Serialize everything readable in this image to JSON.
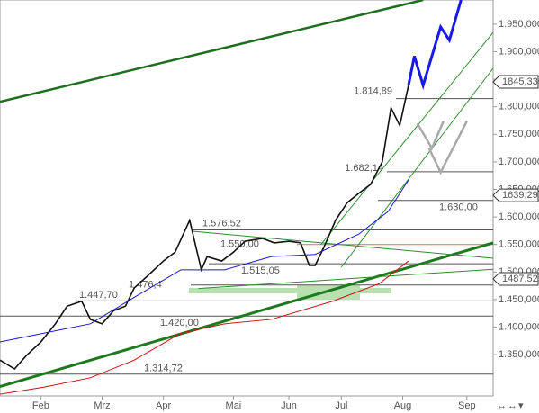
{
  "chart_data": {
    "type": "line",
    "xlim": [
      0,
      169
    ],
    "ylim": [
      1275,
      1994
    ],
    "xticks": [
      {
        "value": 14,
        "label": "Feb"
      },
      {
        "value": 35,
        "label": "Mrz"
      },
      {
        "value": 56,
        "label": "Apr"
      },
      {
        "value": 80,
        "label": "Mai"
      },
      {
        "value": 99,
        "label": "Jun"
      },
      {
        "value": 117,
        "label": "Jul"
      },
      {
        "value": 138,
        "label": "Aug"
      },
      {
        "value": 160,
        "label": "Sep"
      }
    ],
    "yticks": [
      {
        "value": 1350,
        "label": "1.350,000"
      },
      {
        "value": 1400,
        "label": "1.400,000"
      },
      {
        "value": 1450,
        "label": "1.450,000"
      },
      {
        "value": 1500,
        "label": "1.500,000"
      },
      {
        "value": 1550,
        "label": "1.550,000"
      },
      {
        "value": 1600,
        "label": "1.600,000"
      },
      {
        "value": 1650,
        "label": "1.650,000"
      },
      {
        "value": 1700,
        "label": "1.700,000"
      },
      {
        "value": 1750,
        "label": "1.750,000"
      },
      {
        "value": 1800,
        "label": "1.800,000"
      },
      {
        "value": 1850,
        "label": "1.850,000"
      },
      {
        "value": 1900,
        "label": "1.900,000"
      },
      {
        "value": 1950,
        "label": "1.950,000"
      }
    ],
    "series": [
      {
        "color": "#111111",
        "x": [
          0,
          5,
          9,
          14,
          19,
          23,
          28,
          31,
          35,
          39,
          43,
          46,
          51,
          56,
          60,
          65,
          69,
          71,
          76,
          80,
          84,
          90,
          94,
          99,
          103,
          106,
          108,
          111,
          115,
          119,
          123,
          127,
          131,
          134,
          137,
          140
        ],
        "values": [
          1340,
          1324,
          1348,
          1373,
          1406,
          1438,
          1447,
          1414,
          1406,
          1430,
          1438,
          1471,
          1495,
          1520,
          1536,
          1594,
          1504,
          1528,
          1520,
          1536,
          1556,
          1561,
          1553,
          1556,
          1553,
          1512,
          1512,
          1545,
          1594,
          1626,
          1643,
          1659,
          1700,
          1798,
          1766,
          1839
        ]
      },
      {
        "color": "#1a1acc",
        "x": [
          0,
          15,
          31,
          46,
          62,
          77,
          93,
          108,
          123,
          133,
          140
        ],
        "values": [
          1373,
          1389,
          1406,
          1454,
          1504,
          1504,
          1528,
          1532,
          1569,
          1610,
          1667
        ]
      },
      {
        "color": "#cc1111",
        "x": [
          0,
          15,
          31,
          46,
          62,
          77,
          93,
          114,
          130,
          140
        ],
        "values": [
          1278,
          1291,
          1308,
          1340,
          1389,
          1406,
          1414,
          1447,
          1479,
          1520
        ]
      }
    ],
    "levels": [
      {
        "value": 1814.89,
        "label": "1.814,89",
        "color": "#555555"
      },
      {
        "value": 1682.14,
        "label": "1.682,14",
        "color": "#555555"
      },
      {
        "value": 1630.0,
        "label": "1.630,00",
        "color": "#555555"
      },
      {
        "value": 1576.52,
        "label": "1.576,52",
        "color": "#555555"
      },
      {
        "value": 1550.0,
        "label": "1.550,00",
        "color": "#e07040"
      },
      {
        "value": 1515.05,
        "label": "1.515,05",
        "color": "#555555"
      },
      {
        "value": 1476.4,
        "label": "1.476,4",
        "color": "#555555"
      },
      {
        "value": 1447.7,
        "label": "1.447,70",
        "color": "#555555"
      },
      {
        "value": 1420.0,
        "label": "1.420,00",
        "color": "#555555"
      },
      {
        "value": 1314.72,
        "label": "1.314,72",
        "color": "#555555"
      }
    ],
    "trendlines": [
      {
        "color": "#1e6e1e",
        "width": 2.5,
        "x": [
          0,
          145
        ],
        "values": [
          1809,
          1994
        ]
      },
      {
        "color": "#1e7a1e",
        "width": 3,
        "x": [
          0,
          169
        ],
        "values": [
          1292,
          1553
        ]
      },
      {
        "color": "#2e8b2e",
        "width": 1,
        "x": [
          110,
          169
        ],
        "values": [
          1550,
          1935
        ]
      },
      {
        "color": "#2e8b2e",
        "width": 1,
        "x": [
          117,
          169
        ],
        "values": [
          1509,
          1870
        ]
      },
      {
        "color": "#2e8b2e",
        "width": 1,
        "x": [
          66,
          169
        ],
        "values": [
          1574,
          1525
        ]
      },
      {
        "color": "#2e8b2e",
        "width": 1,
        "x": [
          68,
          169
        ],
        "values": [
          1470,
          1505
        ]
      }
    ],
    "projections": [
      {
        "color": "#1a1ae6",
        "width": 3,
        "x": [
          140,
          142,
          145,
          151,
          154,
          158
        ],
        "values": [
          1839,
          1892,
          1839,
          1945,
          1921,
          1994
        ]
      },
      {
        "color": "#aaaaaa",
        "width": 2.5,
        "x": [
          143,
          148,
          152
        ],
        "values": [
          1770,
          1725,
          1774
        ]
      },
      {
        "color": "#aaaaaa",
        "width": 2.5,
        "x": [
          147,
          151,
          160
        ],
        "values": [
          1725,
          1681,
          1774
        ]
      }
    ],
    "price_tags": [
      {
        "value": 1845.33,
        "label": "1845,33"
      },
      {
        "value": 1639.29,
        "label": "1639,29"
      },
      {
        "value": 1487.52,
        "label": "1487,52"
      }
    ],
    "scroll_controls": [
      "↔",
      "↔",
      "▾"
    ]
  }
}
